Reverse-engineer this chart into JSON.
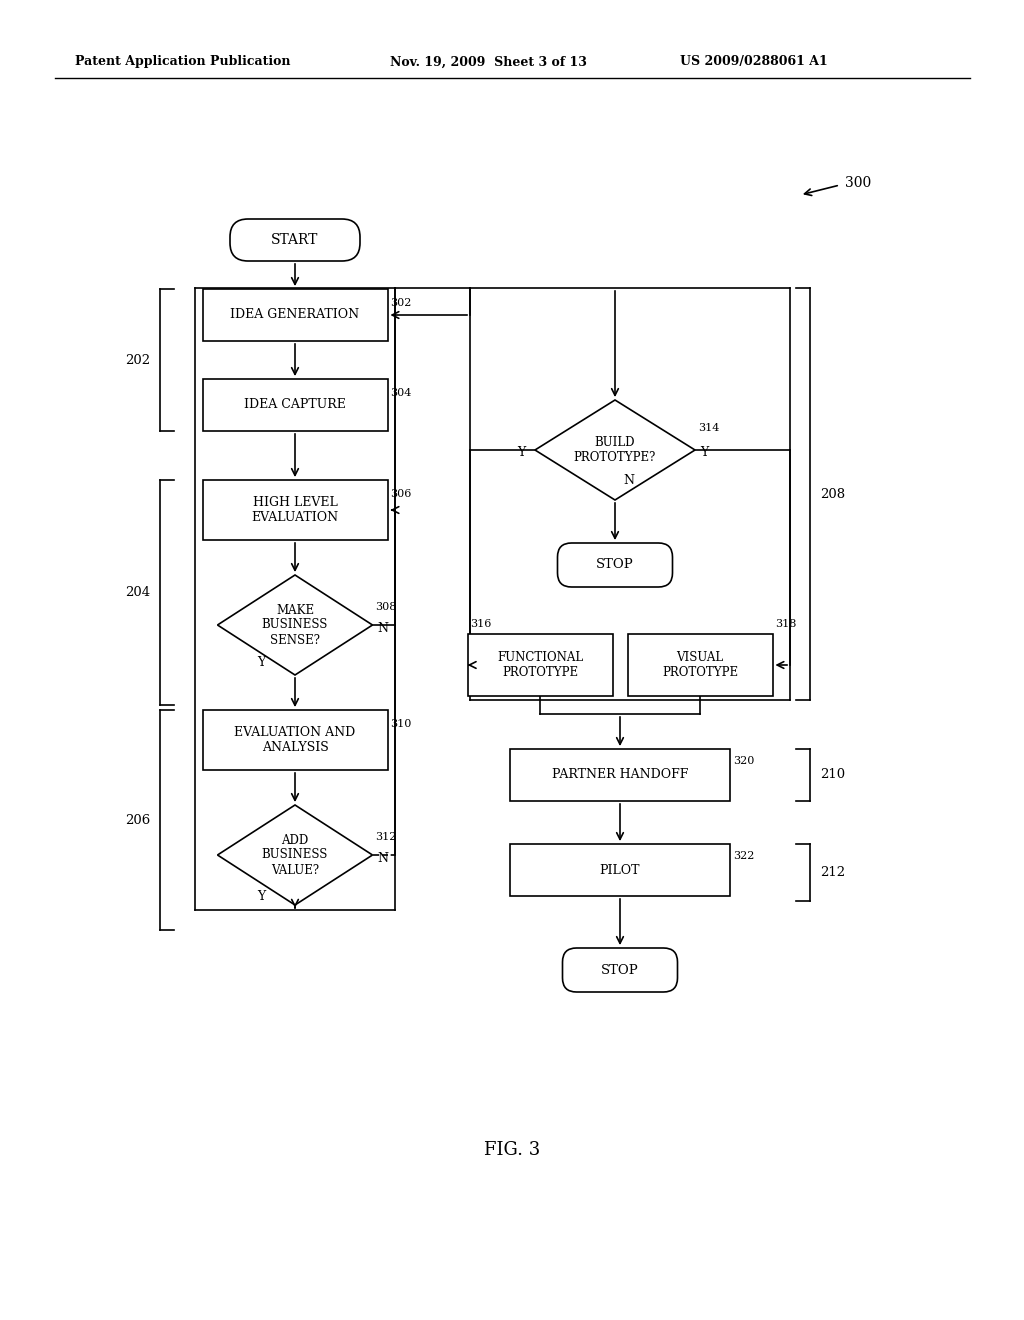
{
  "bg_color": "#ffffff",
  "header_left": "Patent Application Publication",
  "header_mid": "Nov. 19, 2009  Sheet 3 of 13",
  "header_right": "US 2009/0288061 A1",
  "fig_label": "FIG. 3"
}
